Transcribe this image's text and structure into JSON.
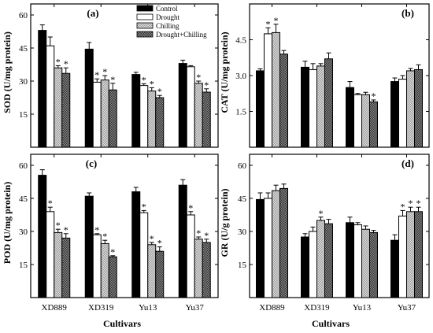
{
  "colors": {
    "Control": "#000000",
    "Drought": "#ffffff",
    "Chilling": "pattern-grey",
    "Drought+Chilling": "pattern-dark"
  },
  "chart_data": [
    {
      "type": "bar",
      "panel_label": "(a)",
      "ylabel": "SOD (U/mg protein)",
      "xlabel": "",
      "ylim": [
        0,
        65
      ],
      "yticks": [
        15,
        30,
        45,
        60
      ],
      "categories": [
        "XD889",
        "XD319",
        "Yu13",
        "Yu37"
      ],
      "series": [
        {
          "name": "Control",
          "values": [
            53,
            44.5,
            33,
            38
          ],
          "errors": [
            2.5,
            3,
            1,
            1.5
          ]
        },
        {
          "name": "Drought",
          "values": [
            46,
            29.5,
            28,
            36.5
          ],
          "errors": [
            4,
            1.5,
            0.8,
            0.5
          ]
        },
        {
          "name": "Chilling",
          "values": [
            36,
            30.5,
            25.5,
            29
          ],
          "errors": [
            1,
            2,
            1.5,
            1
          ]
        },
        {
          "name": "Drought+Chilling",
          "values": [
            33.5,
            26,
            22.5,
            25
          ],
          "errors": [
            2.5,
            3,
            1,
            1.5
          ]
        }
      ],
      "significance": [
        [
          false,
          false,
          true,
          true
        ],
        [
          false,
          true,
          true,
          true
        ],
        [
          false,
          true,
          true,
          true
        ],
        [
          false,
          false,
          true,
          true
        ]
      ],
      "legend": "top-right"
    },
    {
      "type": "bar",
      "panel_label": "(b)",
      "ylabel": "CAT (U/mg protein)",
      "xlabel": "",
      "ylim": [
        0,
        6
      ],
      "yticks": [
        1.5,
        3.0,
        4.5
      ],
      "ytick_labels": [
        "1.5",
        "3.0",
        "4.5"
      ],
      "categories": [
        "XD889",
        "XD319",
        "Yu13",
        "Yu37"
      ],
      "series": [
        {
          "name": "Control",
          "values": [
            3.2,
            3.35,
            2.5,
            2.75
          ],
          "errors": [
            0.08,
            0.25,
            0.25,
            0.15
          ]
        },
        {
          "name": "Drought",
          "values": [
            4.75,
            3.25,
            2.2,
            2.85
          ],
          "errors": [
            0.25,
            0.25,
            0.05,
            0.15
          ]
        },
        {
          "name": "Chilling",
          "values": [
            4.8,
            3.4,
            2.2,
            3.2
          ],
          "errors": [
            0.35,
            0.1,
            0.1,
            0.1
          ]
        },
        {
          "name": "Drought+Chilling",
          "values": [
            3.9,
            3.7,
            1.9,
            3.25
          ],
          "errors": [
            0.15,
            0.25,
            0.08,
            0.2
          ]
        }
      ],
      "significance": [
        [
          false,
          true,
          true,
          false
        ],
        [
          false,
          false,
          false,
          false
        ],
        [
          false,
          false,
          false,
          true
        ],
        [
          false,
          false,
          false,
          false
        ]
      ]
    },
    {
      "type": "bar",
      "panel_label": "(c)",
      "ylabel": "POD (U/mg protein)",
      "xlabel": "",
      "ylim": [
        0,
        65
      ],
      "yticks": [
        15,
        30,
        45,
        60
      ],
      "categories": [
        "XD889",
        "XD319",
        "Yu13",
        "Yu37"
      ],
      "series": [
        {
          "name": "Control",
          "values": [
            55.5,
            46,
            48,
            51
          ],
          "errors": [
            2.5,
            1.5,
            2,
            2.5
          ]
        },
        {
          "name": "Drought",
          "values": [
            39,
            28.5,
            38.5,
            37.5
          ],
          "errors": [
            2,
            0.5,
            1,
            1.5
          ]
        },
        {
          "name": "Chilling",
          "values": [
            29.5,
            24.5,
            24,
            26.5
          ],
          "errors": [
            1.5,
            1.5,
            1,
            1
          ]
        },
        {
          "name": "Drought+Chilling",
          "values": [
            27,
            18.5,
            21,
            25
          ],
          "errors": [
            2,
            0.5,
            2,
            1.5
          ]
        }
      ],
      "significance": [
        [
          false,
          true,
          true,
          true
        ],
        [
          false,
          true,
          true,
          true
        ],
        [
          false,
          true,
          true,
          true
        ],
        [
          false,
          true,
          true,
          true
        ]
      ]
    },
    {
      "type": "bar",
      "panel_label": "(d)",
      "ylabel": "GR (U/g protein)",
      "xlabel": "Cultivars",
      "ylim": [
        0,
        65
      ],
      "yticks": [
        15,
        30,
        45,
        60
      ],
      "categories": [
        "XD889",
        "XD319",
        "Yu13",
        "Yu37"
      ],
      "series": [
        {
          "name": "Control",
          "values": [
            44.5,
            27.5,
            34,
            26
          ],
          "errors": [
            3,
            1.5,
            2.5,
            2.5
          ]
        },
        {
          "name": "Drought",
          "values": [
            45,
            30,
            33,
            37
          ],
          "errors": [
            2.5,
            2,
            1,
            2.5
          ]
        },
        {
          "name": "Chilling",
          "values": [
            48.5,
            35,
            31,
            39
          ],
          "errors": [
            2.5,
            1.5,
            1.5,
            2
          ]
        },
        {
          "name": "Drought+Chilling",
          "values": [
            49.5,
            33.5,
            29.5,
            39
          ],
          "errors": [
            2,
            2,
            1,
            2
          ]
        }
      ],
      "significance": [
        [
          false,
          false,
          false,
          false
        ],
        [
          false,
          false,
          true,
          false
        ],
        [
          false,
          false,
          false,
          false
        ],
        [
          false,
          true,
          true,
          true
        ]
      ]
    }
  ],
  "shared": {
    "xlabel_left": "Cultivars",
    "xlabel_right": "Cultivars",
    "star": "*"
  }
}
